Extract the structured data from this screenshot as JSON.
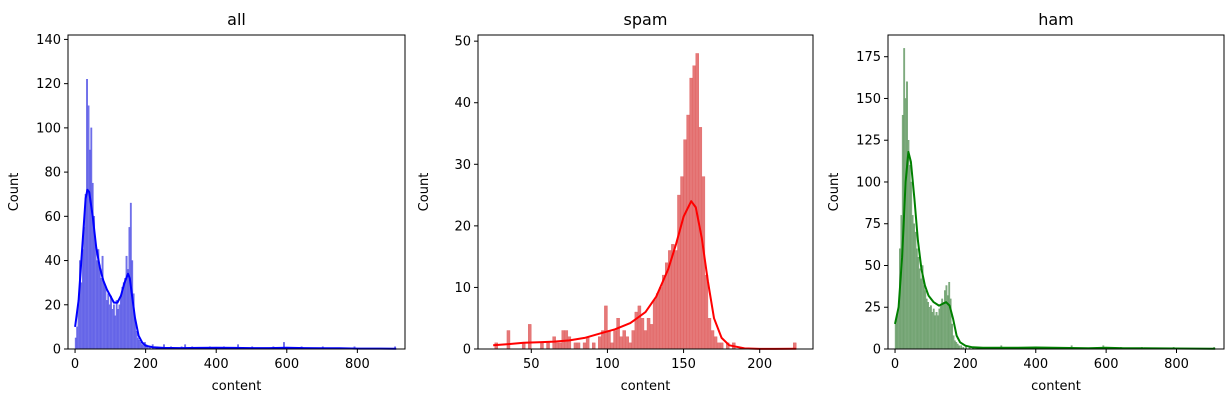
{
  "chart_data": [
    {
      "type": "histogram",
      "title": "all",
      "xlabel": "content",
      "ylabel": "Count",
      "xlim": [
        -20,
        935
      ],
      "ylim": [
        0,
        142
      ],
      "xticks": [
        0,
        200,
        400,
        600,
        800
      ],
      "yticks": [
        0,
        20,
        40,
        60,
        80,
        100,
        120,
        140
      ],
      "bar_color": "#5a5ae6",
      "kde_color": "#0000ff",
      "bin_width": 4,
      "bins": [
        [
          0,
          5
        ],
        [
          4,
          10
        ],
        [
          8,
          20
        ],
        [
          12,
          40
        ],
        [
          16,
          30
        ],
        [
          20,
          45
        ],
        [
          24,
          55
        ],
        [
          28,
          70
        ],
        [
          32,
          122
        ],
        [
          36,
          110
        ],
        [
          40,
          90
        ],
        [
          44,
          100
        ],
        [
          48,
          75
        ],
        [
          52,
          60
        ],
        [
          56,
          48
        ],
        [
          60,
          40
        ],
        [
          64,
          45
        ],
        [
          68,
          38
        ],
        [
          72,
          32
        ],
        [
          76,
          42
        ],
        [
          80,
          30
        ],
        [
          84,
          28
        ],
        [
          88,
          22
        ],
        [
          92,
          25
        ],
        [
          96,
          20
        ],
        [
          100,
          24
        ],
        [
          104,
          18
        ],
        [
          108,
          20
        ],
        [
          112,
          15
        ],
        [
          116,
          22
        ],
        [
          120,
          18
        ],
        [
          124,
          20
        ],
        [
          128,
          24
        ],
        [
          132,
          28
        ],
        [
          136,
          30
        ],
        [
          140,
          32
        ],
        [
          144,
          42
        ],
        [
          148,
          36
        ],
        [
          152,
          55
        ],
        [
          156,
          66
        ],
        [
          160,
          40
        ],
        [
          164,
          25
        ],
        [
          168,
          14
        ],
        [
          172,
          8
        ],
        [
          176,
          5
        ],
        [
          180,
          4
        ],
        [
          184,
          3
        ],
        [
          188,
          2
        ],
        [
          192,
          2
        ],
        [
          196,
          3
        ],
        [
          200,
          2
        ],
        [
          204,
          1
        ],
        [
          210,
          1
        ],
        [
          218,
          2
        ],
        [
          230,
          1
        ],
        [
          250,
          2
        ],
        [
          270,
          1
        ],
        [
          300,
          1
        ],
        [
          310,
          2
        ],
        [
          330,
          1
        ],
        [
          380,
          1
        ],
        [
          420,
          1
        ],
        [
          460,
          2
        ],
        [
          500,
          1
        ],
        [
          560,
          1
        ],
        [
          590,
          3
        ],
        [
          640,
          1
        ],
        [
          700,
          1
        ],
        [
          790,
          1
        ],
        [
          905,
          1
        ]
      ],
      "kde": [
        [
          0,
          10
        ],
        [
          10,
          22
        ],
        [
          20,
          45
        ],
        [
          30,
          68
        ],
        [
          35,
          72
        ],
        [
          40,
          71
        ],
        [
          50,
          60
        ],
        [
          60,
          46
        ],
        [
          70,
          37
        ],
        [
          80,
          31
        ],
        [
          90,
          27
        ],
        [
          100,
          24
        ],
        [
          110,
          21
        ],
        [
          120,
          21
        ],
        [
          130,
          24
        ],
        [
          140,
          30
        ],
        [
          150,
          34
        ],
        [
          155,
          32
        ],
        [
          160,
          26
        ],
        [
          170,
          14
        ],
        [
          180,
          6
        ],
        [
          190,
          3
        ],
        [
          200,
          1.5
        ],
        [
          220,
          0.8
        ],
        [
          250,
          0.5
        ],
        [
          300,
          0.4
        ],
        [
          350,
          0.5
        ],
        [
          400,
          0.6
        ],
        [
          450,
          0.5
        ],
        [
          500,
          0.4
        ],
        [
          550,
          0.4
        ],
        [
          600,
          0.6
        ],
        [
          650,
          0.4
        ],
        [
          700,
          0.3
        ],
        [
          750,
          0.3
        ],
        [
          800,
          0.2
        ],
        [
          850,
          0.2
        ],
        [
          910,
          0.1
        ]
      ]
    },
    {
      "type": "histogram",
      "title": "spam",
      "xlabel": "content",
      "ylabel": "Count",
      "xlim": [
        15,
        235
      ],
      "ylim": [
        0,
        51
      ],
      "xticks": [
        50,
        100,
        150,
        200
      ],
      "yticks": [
        0,
        10,
        20,
        30,
        40,
        50
      ],
      "bar_color": "#e06060",
      "kde_color": "#ff0000",
      "bin_width": 2,
      "bins": [
        [
          26,
          1
        ],
        [
          34,
          3
        ],
        [
          44,
          1
        ],
        [
          48,
          4
        ],
        [
          56,
          1
        ],
        [
          60,
          1
        ],
        [
          64,
          2
        ],
        [
          66,
          1
        ],
        [
          68,
          1
        ],
        [
          70,
          3
        ],
        [
          72,
          3
        ],
        [
          74,
          2
        ],
        [
          78,
          1
        ],
        [
          80,
          1
        ],
        [
          84,
          1
        ],
        [
          86,
          2
        ],
        [
          90,
          1
        ],
        [
          94,
          2
        ],
        [
          96,
          3
        ],
        [
          98,
          7
        ],
        [
          100,
          3
        ],
        [
          102,
          1
        ],
        [
          104,
          3
        ],
        [
          106,
          5
        ],
        [
          108,
          2
        ],
        [
          110,
          3
        ],
        [
          112,
          2
        ],
        [
          114,
          1
        ],
        [
          116,
          3
        ],
        [
          118,
          6
        ],
        [
          120,
          7
        ],
        [
          122,
          5
        ],
        [
          124,
          3
        ],
        [
          126,
          5
        ],
        [
          128,
          4
        ],
        [
          130,
          8
        ],
        [
          132,
          9
        ],
        [
          134,
          10
        ],
        [
          136,
          12
        ],
        [
          138,
          14
        ],
        [
          140,
          16
        ],
        [
          142,
          17
        ],
        [
          144,
          16
        ],
        [
          146,
          25
        ],
        [
          148,
          28
        ],
        [
          150,
          34
        ],
        [
          152,
          38
        ],
        [
          154,
          44
        ],
        [
          156,
          46
        ],
        [
          158,
          48
        ],
        [
          160,
          36
        ],
        [
          162,
          28
        ],
        [
          164,
          12
        ],
        [
          166,
          5
        ],
        [
          168,
          3
        ],
        [
          170,
          2
        ],
        [
          172,
          1
        ],
        [
          174,
          1
        ],
        [
          178,
          1
        ],
        [
          182,
          1
        ],
        [
          222,
          1
        ]
      ],
      "kde": [
        [
          25,
          0.6
        ],
        [
          35,
          0.8
        ],
        [
          45,
          1.0
        ],
        [
          55,
          1.1
        ],
        [
          65,
          1.2
        ],
        [
          75,
          1.4
        ],
        [
          85,
          1.8
        ],
        [
          95,
          2.5
        ],
        [
          105,
          3.2
        ],
        [
          115,
          4.2
        ],
        [
          125,
          6.0
        ],
        [
          132,
          8.5
        ],
        [
          140,
          13
        ],
        [
          145,
          17
        ],
        [
          150,
          21.5
        ],
        [
          155,
          24
        ],
        [
          158,
          23
        ],
        [
          162,
          18
        ],
        [
          166,
          11
        ],
        [
          170,
          5
        ],
        [
          175,
          1.8
        ],
        [
          180,
          0.6
        ],
        [
          190,
          0.1
        ],
        [
          200,
          0.02
        ],
        [
          210,
          0.02
        ],
        [
          224,
          0.05
        ]
      ]
    },
    {
      "type": "histogram",
      "title": "ham",
      "xlabel": "content",
      "ylabel": "Count",
      "xlim": [
        -20,
        935
      ],
      "ylim": [
        0,
        188
      ],
      "xticks": [
        0,
        200,
        400,
        600,
        800
      ],
      "yticks": [
        0,
        25,
        50,
        75,
        100,
        125,
        150,
        175
      ],
      "bar_color": "#6a9e6a",
      "kde_color": "#008000",
      "bin_width": 4,
      "bins": [
        [
          0,
          15
        ],
        [
          4,
          20
        ],
        [
          8,
          25
        ],
        [
          12,
          60
        ],
        [
          16,
          80
        ],
        [
          20,
          140
        ],
        [
          24,
          180
        ],
        [
          28,
          150
        ],
        [
          32,
          160
        ],
        [
          36,
          125
        ],
        [
          40,
          110
        ],
        [
          44,
          100
        ],
        [
          48,
          80
        ],
        [
          52,
          75
        ],
        [
          56,
          70
        ],
        [
          60,
          60
        ],
        [
          64,
          55
        ],
        [
          68,
          48
        ],
        [
          72,
          42
        ],
        [
          76,
          50
        ],
        [
          80,
          38
        ],
        [
          84,
          35
        ],
        [
          88,
          30
        ],
        [
          92,
          28
        ],
        [
          96,
          25
        ],
        [
          100,
          26
        ],
        [
          104,
          22
        ],
        [
          108,
          24
        ],
        [
          112,
          20
        ],
        [
          116,
          22
        ],
        [
          120,
          20
        ],
        [
          124,
          24
        ],
        [
          128,
          26
        ],
        [
          132,
          30
        ],
        [
          136,
          28
        ],
        [
          140,
          35
        ],
        [
          144,
          38
        ],
        [
          148,
          32
        ],
        [
          152,
          40
        ],
        [
          156,
          30
        ],
        [
          160,
          15
        ],
        [
          164,
          8
        ],
        [
          168,
          5
        ],
        [
          172,
          4
        ],
        [
          176,
          3
        ],
        [
          180,
          2
        ],
        [
          186,
          2
        ],
        [
          192,
          1
        ],
        [
          200,
          2
        ],
        [
          210,
          1
        ],
        [
          220,
          1
        ],
        [
          240,
          1
        ],
        [
          260,
          1
        ],
        [
          300,
          2
        ],
        [
          340,
          1
        ],
        [
          380,
          1
        ],
        [
          420,
          1
        ],
        [
          460,
          1
        ],
        [
          500,
          2
        ],
        [
          590,
          2
        ],
        [
          640,
          1
        ],
        [
          700,
          1
        ],
        [
          790,
          1
        ],
        [
          905,
          1
        ]
      ],
      "kde": [
        [
          0,
          15
        ],
        [
          10,
          25
        ],
        [
          20,
          55
        ],
        [
          30,
          100
        ],
        [
          38,
          118
        ],
        [
          45,
          112
        ],
        [
          55,
          90
        ],
        [
          65,
          65
        ],
        [
          75,
          48
        ],
        [
          85,
          38
        ],
        [
          95,
          32
        ],
        [
          110,
          28
        ],
        [
          125,
          26
        ],
        [
          135,
          27
        ],
        [
          145,
          28
        ],
        [
          155,
          26
        ],
        [
          165,
          18
        ],
        [
          175,
          8
        ],
        [
          185,
          4
        ],
        [
          200,
          2
        ],
        [
          220,
          1
        ],
        [
          250,
          0.8
        ],
        [
          300,
          0.7
        ],
        [
          350,
          0.8
        ],
        [
          400,
          0.9
        ],
        [
          450,
          0.7
        ],
        [
          500,
          0.6
        ],
        [
          550,
          0.5
        ],
        [
          600,
          0.7
        ],
        [
          650,
          0.5
        ],
        [
          700,
          0.4
        ],
        [
          800,
          0.3
        ],
        [
          910,
          0.2
        ]
      ]
    }
  ]
}
